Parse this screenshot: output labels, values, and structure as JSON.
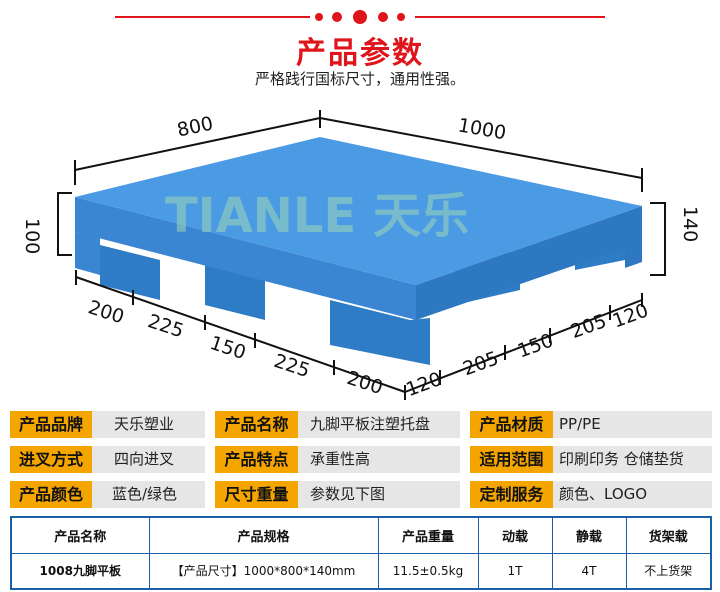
{
  "header": {
    "title": "产品参数",
    "subtitle": "严格践行国标尺寸，通用性强。",
    "accent": "#e0141b"
  },
  "figure": {
    "watermark": "TIANLE 天乐",
    "pallet_color": "#3d8fdc",
    "dims": {
      "width": "800",
      "length": "1000",
      "deck_height": "100",
      "total_height": "140",
      "left_segments": [
        "200",
        "225",
        "150",
        "225",
        "200"
      ],
      "right_segments": [
        "120",
        "205",
        "150",
        "205",
        "120"
      ]
    }
  },
  "params": [
    [
      {
        "label": "产品品牌",
        "value": "天乐塑业"
      },
      {
        "label": "产品名称",
        "value": "九脚平板注塑托盘"
      },
      {
        "label": "产品材质",
        "value": "PP/PE"
      }
    ],
    [
      {
        "label": "进叉方式",
        "value": "四向进叉"
      },
      {
        "label": "产品特点",
        "value": "承重性高"
      },
      {
        "label": "适用范围",
        "value": "印刷印务 仓储垫货"
      }
    ],
    [
      {
        "label": "产品颜色",
        "value": "蓝色/绿色"
      },
      {
        "label": "尺寸重量",
        "value": "参数见下图"
      },
      {
        "label": "定制服务",
        "value": "颜色、LOGO"
      }
    ]
  ],
  "param_colors": {
    "label_bg": "#f5a500",
    "value_bg": "#e6e6e6"
  },
  "spec_table": {
    "headers": [
      "产品名称",
      "产品规格",
      "产品重量",
      "动载",
      "静载",
      "货架载"
    ],
    "rows": [
      [
        "1008九脚平板",
        "【产品尺寸】1000*800*140mm",
        "11.5±0.5kg",
        "1T",
        "4T",
        "不上货架"
      ]
    ],
    "border_color": "#1a5fa8"
  }
}
